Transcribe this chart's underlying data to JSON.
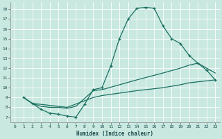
{
  "xlabel": "Humidex (Indice chaleur)",
  "bg_color": "#c8e8e0",
  "line_color": "#1a7060",
  "grid_color": "#b0d8d0",
  "xlim": [
    -0.5,
    23.5
  ],
  "ylim": [
    6.5,
    18.7
  ],
  "yticks": [
    7,
    8,
    9,
    10,
    11,
    12,
    13,
    14,
    15,
    16,
    17,
    18
  ],
  "xticks": [
    0,
    1,
    2,
    3,
    4,
    5,
    6,
    7,
    8,
    9,
    10,
    11,
    12,
    13,
    14,
    15,
    16,
    17,
    18,
    19,
    20,
    21,
    22,
    23
  ],
  "line1_x": [
    1,
    2,
    3,
    4,
    5,
    6,
    7,
    8,
    9,
    10,
    11,
    12,
    13,
    14,
    15,
    16,
    17,
    18,
    19,
    20,
    21,
    22,
    23
  ],
  "line1_y": [
    9.0,
    8.4,
    7.8,
    7.4,
    7.3,
    7.1,
    7.0,
    8.3,
    9.8,
    10.0,
    12.2,
    15.0,
    17.0,
    18.1,
    18.2,
    18.1,
    16.3,
    15.0,
    14.5,
    13.3,
    12.5,
    11.8,
    10.8
  ],
  "line2_x": [
    1,
    2,
    3,
    4,
    5,
    6,
    7,
    9,
    10,
    12,
    14,
    17,
    19,
    20,
    21,
    22,
    23
  ],
  "line2_y": [
    9.0,
    8.4,
    8.1,
    8.0,
    8.0,
    7.9,
    8.1,
    9.7,
    9.8,
    10.3,
    10.8,
    11.5,
    12.0,
    12.3,
    12.5,
    12.0,
    11.5
  ],
  "line3_x": [
    1,
    2,
    6,
    9,
    10,
    14,
    17,
    19,
    20,
    21,
    22,
    23
  ],
  "line3_y": [
    9.0,
    8.4,
    8.0,
    9.0,
    9.2,
    9.7,
    10.0,
    10.3,
    10.5,
    10.6,
    10.7,
    10.8
  ]
}
